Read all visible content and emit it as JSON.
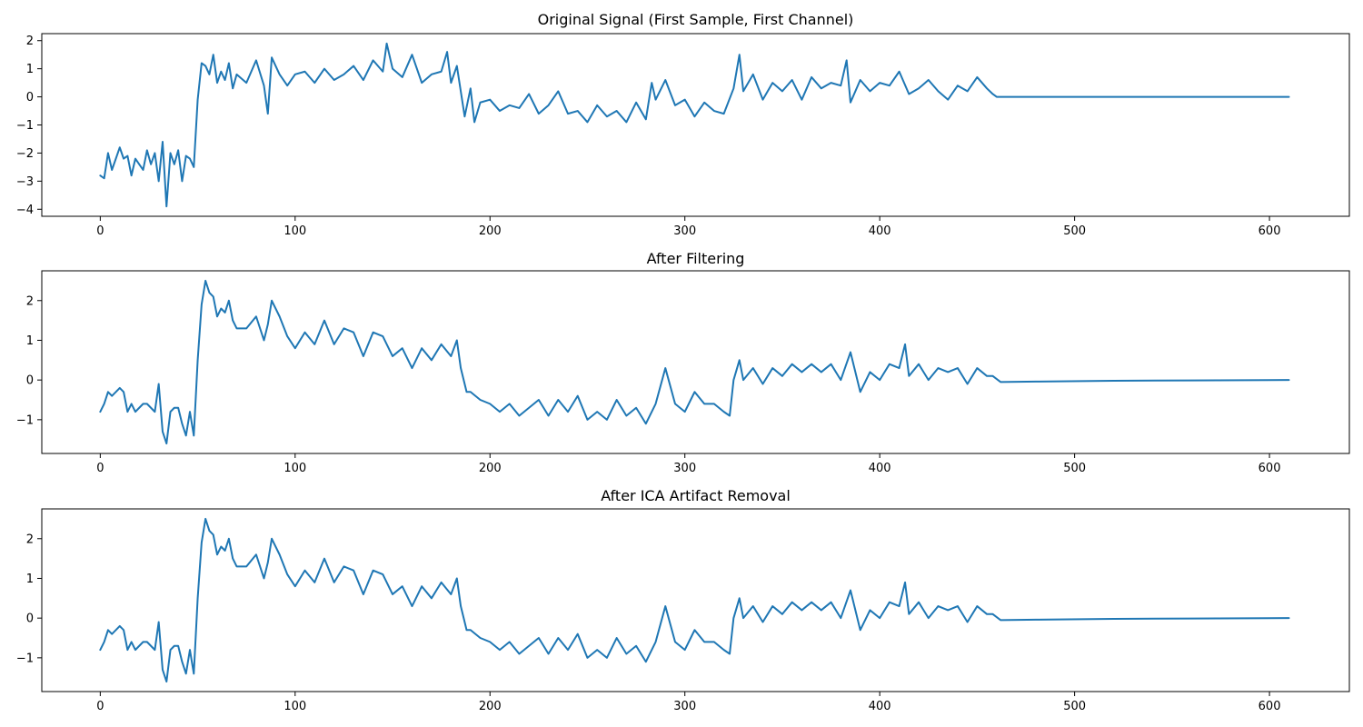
{
  "chart_data": [
    {
      "type": "line",
      "title": "Original Signal (First Sample, First Channel)",
      "xlim": [
        -30,
        641
      ],
      "ylim": [
        -4.25,
        2.25
      ],
      "xticks": [
        0,
        100,
        200,
        300,
        400,
        500,
        600
      ],
      "yticks": [
        -4,
        -3,
        -2,
        -1,
        0,
        1,
        2
      ],
      "color": "#1f77b4",
      "series": [
        {
          "x": [
            0,
            2,
            4,
            6,
            8,
            10,
            12,
            14,
            16,
            18,
            20,
            22,
            24,
            26,
            28,
            30,
            32,
            34,
            36,
            38,
            40,
            42,
            44,
            46,
            48,
            50,
            52,
            54,
            56,
            58,
            60,
            62,
            64,
            66,
            68,
            70,
            75,
            80,
            84,
            86,
            88,
            92,
            96,
            100,
            105,
            110,
            115,
            120,
            125,
            130,
            135,
            140,
            145,
            147,
            150,
            155,
            160,
            165,
            170,
            175,
            178,
            180,
            183,
            185,
            187,
            190,
            192,
            195,
            200,
            205,
            210,
            215,
            220,
            225,
            230,
            235,
            240,
            245,
            250,
            255,
            260,
            265,
            270,
            275,
            280,
            283,
            285,
            290,
            295,
            300,
            305,
            310,
            315,
            320,
            325,
            328,
            330,
            335,
            340,
            345,
            350,
            355,
            360,
            365,
            370,
            375,
            380,
            383,
            385,
            390,
            395,
            400,
            405,
            410,
            415,
            420,
            425,
            430,
            435,
            440,
            445,
            450,
            455,
            458,
            460,
            610
          ],
          "y": [
            -2.8,
            -2.9,
            -2.0,
            -2.6,
            -2.2,
            -1.8,
            -2.2,
            -2.1,
            -2.8,
            -2.2,
            -2.4,
            -2.6,
            -1.9,
            -2.4,
            -2.0,
            -3.0,
            -1.6,
            -3.9,
            -2.0,
            -2.4,
            -1.9,
            -3.0,
            -2.1,
            -2.2,
            -2.5,
            -0.1,
            1.2,
            1.1,
            0.8,
            1.5,
            0.5,
            0.9,
            0.6,
            1.2,
            0.3,
            0.8,
            0.5,
            1.3,
            0.4,
            -0.6,
            1.4,
            0.8,
            0.4,
            0.8,
            0.9,
            0.5,
            1.0,
            0.6,
            0.8,
            1.1,
            0.6,
            1.3,
            0.9,
            1.9,
            1.0,
            0.7,
            1.5,
            0.5,
            0.8,
            0.9,
            1.6,
            0.5,
            1.1,
            0.2,
            -0.7,
            0.3,
            -0.9,
            -0.2,
            -0.1,
            -0.5,
            -0.3,
            -0.4,
            0.1,
            -0.6,
            -0.3,
            0.2,
            -0.6,
            -0.5,
            -0.9,
            -0.3,
            -0.7,
            -0.5,
            -0.9,
            -0.2,
            -0.8,
            0.5,
            -0.1,
            0.6,
            -0.3,
            -0.1,
            -0.7,
            -0.2,
            -0.5,
            -0.6,
            0.3,
            1.5,
            0.2,
            0.8,
            -0.1,
            0.5,
            0.2,
            0.6,
            -0.1,
            0.7,
            0.3,
            0.5,
            0.4,
            1.3,
            -0.2,
            0.6,
            0.2,
            0.5,
            0.4,
            0.9,
            0.1,
            0.3,
            0.6,
            0.2,
            -0.1,
            0.4,
            0.2,
            0.7,
            0.3,
            0.1,
            0.0,
            0.0
          ]
        }
      ]
    },
    {
      "type": "line",
      "title": "After Filtering",
      "xlim": [
        -30,
        641
      ],
      "ylim": [
        -1.85,
        2.75
      ],
      "xticks": [
        0,
        100,
        200,
        300,
        400,
        500,
        600
      ],
      "yticks": [
        -1,
        0,
        1,
        2
      ],
      "color": "#1f77b4",
      "series": [
        {
          "x": [
            0,
            2,
            4,
            6,
            8,
            10,
            12,
            14,
            16,
            18,
            20,
            22,
            24,
            26,
            28,
            30,
            32,
            34,
            36,
            38,
            40,
            42,
            44,
            46,
            48,
            50,
            52,
            54,
            56,
            58,
            60,
            62,
            64,
            66,
            68,
            70,
            75,
            80,
            84,
            86,
            88,
            92,
            96,
            100,
            105,
            110,
            115,
            120,
            125,
            130,
            135,
            140,
            145,
            150,
            155,
            160,
            165,
            170,
            175,
            180,
            183,
            185,
            188,
            190,
            195,
            200,
            205,
            210,
            215,
            220,
            225,
            230,
            235,
            240,
            245,
            250,
            255,
            260,
            265,
            270,
            275,
            280,
            285,
            290,
            295,
            300,
            305,
            310,
            315,
            320,
            323,
            325,
            328,
            330,
            335,
            340,
            345,
            350,
            355,
            360,
            365,
            370,
            375,
            380,
            385,
            390,
            395,
            400,
            405,
            410,
            413,
            415,
            420,
            425,
            430,
            435,
            440,
            445,
            450,
            455,
            458,
            462,
            480,
            520,
            560,
            610
          ],
          "y": [
            -0.8,
            -0.6,
            -0.3,
            -0.4,
            -0.3,
            -0.2,
            -0.3,
            -0.8,
            -0.6,
            -0.8,
            -0.7,
            -0.6,
            -0.6,
            -0.7,
            -0.8,
            -0.1,
            -1.3,
            -1.6,
            -0.8,
            -0.7,
            -0.7,
            -1.1,
            -1.4,
            -0.8,
            -1.4,
            0.5,
            1.9,
            2.5,
            2.2,
            2.1,
            1.6,
            1.8,
            1.7,
            2.0,
            1.5,
            1.3,
            1.3,
            1.6,
            1.0,
            1.4,
            2.0,
            1.6,
            1.1,
            0.8,
            1.2,
            0.9,
            1.5,
            0.9,
            1.3,
            1.2,
            0.6,
            1.2,
            1.1,
            0.6,
            0.8,
            0.3,
            0.8,
            0.5,
            0.9,
            0.6,
            1.0,
            0.3,
            -0.3,
            -0.3,
            -0.5,
            -0.6,
            -0.8,
            -0.6,
            -0.9,
            -0.7,
            -0.5,
            -0.9,
            -0.5,
            -0.8,
            -0.4,
            -1.0,
            -0.8,
            -1.0,
            -0.5,
            -0.9,
            -0.7,
            -1.1,
            -0.6,
            0.3,
            -0.6,
            -0.8,
            -0.3,
            -0.6,
            -0.6,
            -0.8,
            -0.9,
            0.0,
            0.5,
            0.0,
            0.3,
            -0.1,
            0.3,
            0.1,
            0.4,
            0.2,
            0.4,
            0.2,
            0.4,
            0.0,
            0.7,
            -0.3,
            0.2,
            0.0,
            0.4,
            0.3,
            0.9,
            0.1,
            0.4,
            0.0,
            0.3,
            0.2,
            0.3,
            -0.1,
            0.3,
            0.1,
            0.1,
            -0.05,
            -0.04,
            -0.02,
            -0.01,
            0.0
          ]
        }
      ]
    },
    {
      "type": "line",
      "title": "After ICA Artifact Removal",
      "xlim": [
        -30,
        641
      ],
      "ylim": [
        -1.85,
        2.75
      ],
      "xticks": [
        0,
        100,
        200,
        300,
        400,
        500,
        600
      ],
      "yticks": [
        -1,
        0,
        1,
        2
      ],
      "color": "#1f77b4",
      "series": [
        {
          "x": [
            0,
            2,
            4,
            6,
            8,
            10,
            12,
            14,
            16,
            18,
            20,
            22,
            24,
            26,
            28,
            30,
            32,
            34,
            36,
            38,
            40,
            42,
            44,
            46,
            48,
            50,
            52,
            54,
            56,
            58,
            60,
            62,
            64,
            66,
            68,
            70,
            75,
            80,
            84,
            86,
            88,
            92,
            96,
            100,
            105,
            110,
            115,
            120,
            125,
            130,
            135,
            140,
            145,
            150,
            155,
            160,
            165,
            170,
            175,
            180,
            183,
            185,
            188,
            190,
            195,
            200,
            205,
            210,
            215,
            220,
            225,
            230,
            235,
            240,
            245,
            250,
            255,
            260,
            265,
            270,
            275,
            280,
            285,
            290,
            295,
            300,
            305,
            310,
            315,
            320,
            323,
            325,
            328,
            330,
            335,
            340,
            345,
            350,
            355,
            360,
            365,
            370,
            375,
            380,
            385,
            390,
            395,
            400,
            405,
            410,
            413,
            415,
            420,
            425,
            430,
            435,
            440,
            445,
            450,
            455,
            458,
            462,
            480,
            520,
            560,
            610
          ],
          "y": [
            -0.8,
            -0.6,
            -0.3,
            -0.4,
            -0.3,
            -0.2,
            -0.3,
            -0.8,
            -0.6,
            -0.8,
            -0.7,
            -0.6,
            -0.6,
            -0.7,
            -0.8,
            -0.1,
            -1.3,
            -1.6,
            -0.8,
            -0.7,
            -0.7,
            -1.1,
            -1.4,
            -0.8,
            -1.4,
            0.5,
            1.9,
            2.5,
            2.2,
            2.1,
            1.6,
            1.8,
            1.7,
            2.0,
            1.5,
            1.3,
            1.3,
            1.6,
            1.0,
            1.4,
            2.0,
            1.6,
            1.1,
            0.8,
            1.2,
            0.9,
            1.5,
            0.9,
            1.3,
            1.2,
            0.6,
            1.2,
            1.1,
            0.6,
            0.8,
            0.3,
            0.8,
            0.5,
            0.9,
            0.6,
            1.0,
            0.3,
            -0.3,
            -0.3,
            -0.5,
            -0.6,
            -0.8,
            -0.6,
            -0.9,
            -0.7,
            -0.5,
            -0.9,
            -0.5,
            -0.8,
            -0.4,
            -1.0,
            -0.8,
            -1.0,
            -0.5,
            -0.9,
            -0.7,
            -1.1,
            -0.6,
            0.3,
            -0.6,
            -0.8,
            -0.3,
            -0.6,
            -0.6,
            -0.8,
            -0.9,
            0.0,
            0.5,
            0.0,
            0.3,
            -0.1,
            0.3,
            0.1,
            0.4,
            0.2,
            0.4,
            0.2,
            0.4,
            0.0,
            0.7,
            -0.3,
            0.2,
            0.0,
            0.4,
            0.3,
            0.9,
            0.1,
            0.4,
            0.0,
            0.3,
            0.2,
            0.3,
            -0.1,
            0.3,
            0.1,
            0.1,
            -0.05,
            -0.04,
            -0.02,
            -0.01,
            0.0
          ]
        }
      ]
    }
  ]
}
